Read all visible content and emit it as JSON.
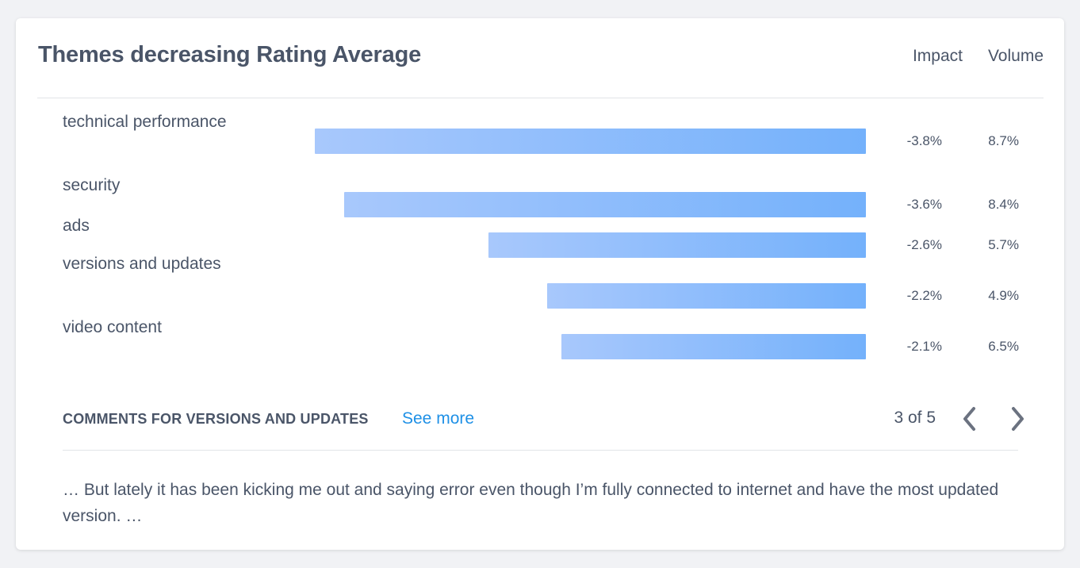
{
  "card": {
    "title": "Themes decreasing Rating Average",
    "impact_header": "Impact",
    "volume_header": "Volume"
  },
  "themes": [
    {
      "label": "technical performance",
      "impact": "-3.8%",
      "volume": "8.7%",
      "impact_value": -3.8
    },
    {
      "label": "security",
      "impact": "-3.6%",
      "volume": "8.4%",
      "impact_value": -3.6
    },
    {
      "label": "ads",
      "impact": "-2.6%",
      "volume": "5.7%",
      "impact_value": -2.6
    },
    {
      "label": "versions and updates",
      "impact": "-2.2%",
      "volume": "4.9%",
      "impact_value": -2.2
    },
    {
      "label": "video content",
      "impact": "-2.1%",
      "volume": "6.5%",
      "impact_value": -2.1
    }
  ],
  "bar_colors": {
    "start": "#a8c8fc",
    "end": "#74b1fb"
  },
  "comments": {
    "heading": "COMMENTS FOR VERSIONS AND UPDATES",
    "see_more": "See more",
    "pager": "3 of 5",
    "text": "… But lately it has been kicking me out and saying error even though I’m fully connected to internet and have the most updated version. …"
  },
  "icons": {
    "prev": "chevron-left-icon",
    "next": "chevron-right-icon"
  }
}
